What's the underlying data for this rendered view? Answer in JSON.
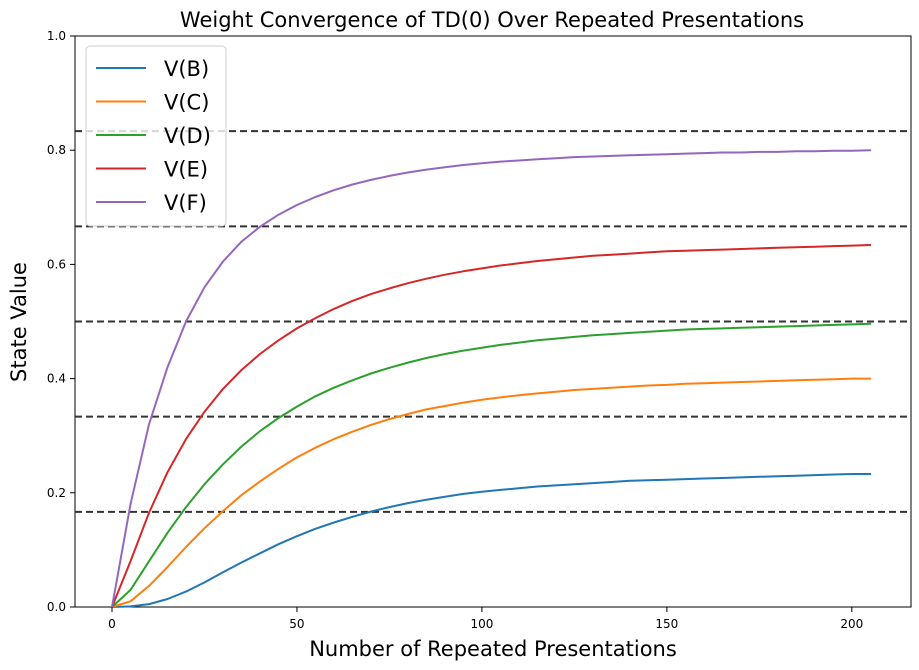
{
  "chart_data": {
    "type": "line",
    "title": "Weight Convergence of TD(0) Over Repeated Presentations",
    "xlabel": "Number of Repeated Presentations",
    "ylabel": "State Value",
    "xlim": [
      -10,
      216
    ],
    "ylim": [
      0.0,
      1.0
    ],
    "x_ticks": [
      0,
      50,
      100,
      150,
      200
    ],
    "x_tick_labels": [
      "0",
      "50",
      "100",
      "150",
      "200"
    ],
    "y_ticks": [
      0.0,
      0.2,
      0.4,
      0.6,
      0.8,
      1.0
    ],
    "y_tick_labels": [
      "0.0",
      "0.2",
      "0.4",
      "0.6",
      "0.8",
      "1.0"
    ],
    "grid": false,
    "legend_position": "upper-left",
    "reference_lines": {
      "style": "dashed",
      "color": "#333333",
      "y_values": [
        0.1667,
        0.3333,
        0.5,
        0.6667,
        0.8333
      ]
    },
    "x": [
      0,
      5,
      10,
      15,
      20,
      25,
      30,
      35,
      40,
      45,
      50,
      55,
      60,
      65,
      70,
      75,
      80,
      85,
      90,
      95,
      100,
      105,
      110,
      115,
      120,
      125,
      130,
      135,
      140,
      145,
      150,
      155,
      160,
      165,
      170,
      175,
      180,
      185,
      190,
      195,
      200,
      205
    ],
    "series": [
      {
        "name": "V(B)",
        "color": "#1f77b4",
        "values": [
          0.0,
          0.001,
          0.005,
          0.014,
          0.027,
          0.043,
          0.061,
          0.078,
          0.094,
          0.11,
          0.124,
          0.137,
          0.148,
          0.158,
          0.167,
          0.175,
          0.182,
          0.188,
          0.193,
          0.198,
          0.202,
          0.205,
          0.208,
          0.211,
          0.213,
          0.215,
          0.217,
          0.219,
          0.221,
          0.222,
          0.223,
          0.224,
          0.225,
          0.226,
          0.227,
          0.228,
          0.229,
          0.23,
          0.231,
          0.232,
          0.233,
          0.233
        ]
      },
      {
        "name": "V(C)",
        "color": "#ff7f0e",
        "values": [
          0.0,
          0.01,
          0.037,
          0.07,
          0.105,
          0.138,
          0.168,
          0.196,
          0.22,
          0.242,
          0.262,
          0.279,
          0.294,
          0.307,
          0.319,
          0.329,
          0.338,
          0.346,
          0.352,
          0.358,
          0.363,
          0.367,
          0.371,
          0.374,
          0.377,
          0.38,
          0.382,
          0.384,
          0.386,
          0.388,
          0.389,
          0.391,
          0.392,
          0.393,
          0.394,
          0.395,
          0.396,
          0.397,
          0.398,
          0.399,
          0.4,
          0.4
        ]
      },
      {
        "name": "V(D)",
        "color": "#2ca02c",
        "values": [
          0.0,
          0.03,
          0.08,
          0.13,
          0.175,
          0.215,
          0.25,
          0.281,
          0.308,
          0.331,
          0.351,
          0.369,
          0.384,
          0.397,
          0.409,
          0.419,
          0.428,
          0.436,
          0.443,
          0.449,
          0.454,
          0.459,
          0.463,
          0.467,
          0.47,
          0.473,
          0.476,
          0.478,
          0.48,
          0.482,
          0.484,
          0.486,
          0.487,
          0.488,
          0.489,
          0.49,
          0.491,
          0.492,
          0.493,
          0.494,
          0.495,
          0.496
        ]
      },
      {
        "name": "V(E)",
        "color": "#d62728",
        "values": [
          0.0,
          0.08,
          0.165,
          0.236,
          0.294,
          0.342,
          0.382,
          0.415,
          0.443,
          0.467,
          0.488,
          0.506,
          0.522,
          0.536,
          0.548,
          0.558,
          0.567,
          0.575,
          0.582,
          0.588,
          0.593,
          0.598,
          0.602,
          0.606,
          0.609,
          0.612,
          0.615,
          0.617,
          0.619,
          0.621,
          0.623,
          0.624,
          0.625,
          0.626,
          0.627,
          0.628,
          0.629,
          0.63,
          0.631,
          0.632,
          0.633,
          0.634
        ]
      },
      {
        "name": "V(F)",
        "color": "#9467bd",
        "values": [
          0.0,
          0.18,
          0.32,
          0.42,
          0.5,
          0.56,
          0.605,
          0.64,
          0.666,
          0.687,
          0.704,
          0.718,
          0.73,
          0.74,
          0.748,
          0.755,
          0.761,
          0.766,
          0.77,
          0.774,
          0.777,
          0.78,
          0.782,
          0.784,
          0.786,
          0.788,
          0.789,
          0.79,
          0.791,
          0.792,
          0.793,
          0.794,
          0.795,
          0.796,
          0.796,
          0.797,
          0.797,
          0.798,
          0.798,
          0.799,
          0.799,
          0.8
        ]
      }
    ]
  }
}
